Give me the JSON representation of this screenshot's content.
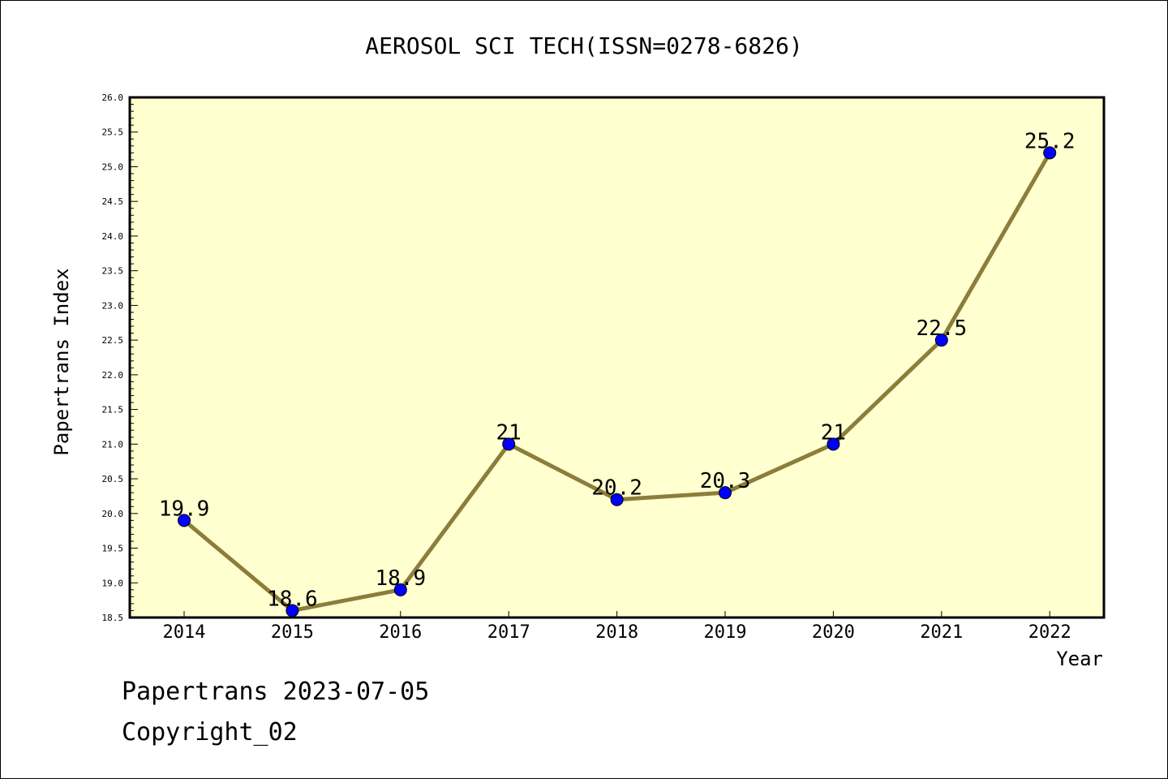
{
  "chart_data": {
    "type": "line",
    "title": "AEROSOL SCI TECH(ISSN=0278-6826)",
    "xlabel": "Year",
    "ylabel": "Papertrans Index",
    "categories": [
      "2014",
      "2015",
      "2016",
      "2017",
      "2018",
      "2019",
      "2020",
      "2021",
      "2022"
    ],
    "series": [
      {
        "values": [
          19.9,
          18.6,
          18.9,
          21.0,
          20.2,
          20.3,
          21.0,
          22.5,
          25.2
        ],
        "data_labels": [
          "19.9",
          "18.6",
          "18.9",
          "21",
          "20.2",
          "20.3",
          "21",
          "22.5",
          "25.2"
        ],
        "line_color": "#8B7D3A",
        "marker_color": "#0000FF"
      }
    ],
    "ylim": [
      18.5,
      26.0
    ],
    "yticks": [
      "18.5",
      "19.0",
      "19.5",
      "20.0",
      "20.5",
      "21.0",
      "21.5",
      "22.0",
      "22.5",
      "23.0",
      "23.5",
      "24.0",
      "24.5",
      "25.0",
      "25.5",
      "26.0"
    ],
    "grid": false,
    "legend": "none",
    "plot_background": "#FFFFD0"
  },
  "footer": {
    "line1": "Papertrans 2023-07-05",
    "line2": "Copyright_02"
  }
}
